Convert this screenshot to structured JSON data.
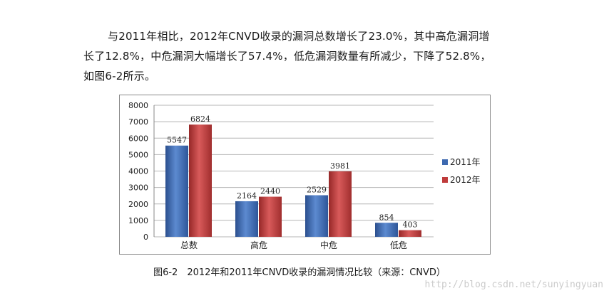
{
  "paragraph": {
    "line1": "与2011年相比，2012年CNVD收录的漏洞总数增长了23.0%，其中高危漏洞增",
    "line2": "长了12.8%，中危漏洞大幅增长了57.4%，低危漏洞数量有所减少，下降了52.8%，",
    "line3": "如图6-2所示。"
  },
  "caption": "图6-2　2012年和2011年CNVD收录的漏洞情况比较（来源：CNVD）",
  "watermark": "http://blog.csdn.net/sunyingyuan",
  "colors": {
    "series2011": "#3d69b0",
    "series2012": "#bf3b3b",
    "grid": "#b5b5b5"
  },
  "chart_data": {
    "type": "bar",
    "categories": [
      "总数",
      "高危",
      "中危",
      "低危"
    ],
    "series": [
      {
        "name": "2011年",
        "values": [
          5547,
          2164,
          2529,
          854
        ]
      },
      {
        "name": "2012年",
        "values": [
          6824,
          2440,
          3981,
          403
        ]
      }
    ],
    "ylim": [
      0,
      8000
    ],
    "yticks": [
      0,
      1000,
      2000,
      3000,
      4000,
      5000,
      6000,
      7000,
      8000
    ],
    "grid": true,
    "legend": "right"
  }
}
